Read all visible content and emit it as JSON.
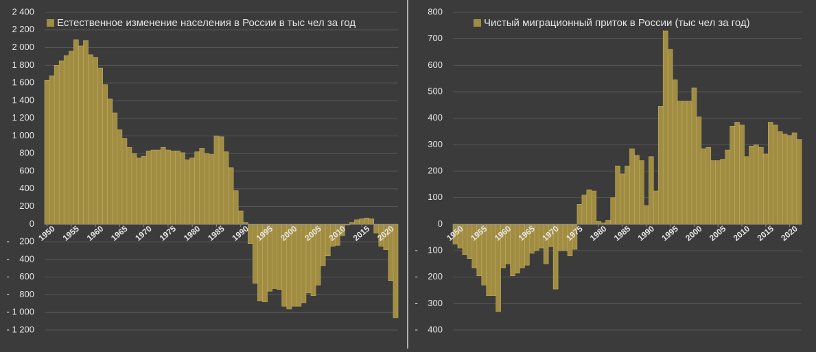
{
  "chart_data": [
    {
      "type": "bar",
      "title": "Естественное изменение населения в России в тыс чел за год",
      "color": "#a08c42",
      "grid": true,
      "legend": "top",
      "xlim": [
        1949.5,
        2022.5
      ],
      "xticks": [
        1950,
        1955,
        1960,
        1965,
        1970,
        1975,
        1980,
        1985,
        1990,
        1995,
        2000,
        2005,
        2010,
        2015,
        2020
      ],
      "ylim": [
        -1200,
        2400
      ],
      "yticks": [
        {
          "value": 2400,
          "label": "2 400"
        },
        {
          "value": 2200,
          "label": "2 200"
        },
        {
          "value": 2000,
          "label": "2 000"
        },
        {
          "value": 1800,
          "label": "1 800"
        },
        {
          "value": 1600,
          "label": "1 600"
        },
        {
          "value": 1400,
          "label": "1 400"
        },
        {
          "value": 1200,
          "label": "1 200"
        },
        {
          "value": 1000,
          "label": "1 000"
        },
        800,
        600,
        400,
        200,
        0,
        {
          "value": -200,
          "label": "-    200"
        },
        {
          "value": -400,
          "label": "-    400"
        },
        {
          "value": -600,
          "label": "-    600"
        },
        {
          "value": -800,
          "label": "-    800"
        },
        {
          "value": -1000,
          "label": "- 1 000"
        },
        {
          "value": -1200,
          "label": "- 1 200"
        }
      ],
      "x": [
        1950,
        1951,
        1952,
        1953,
        1954,
        1955,
        1956,
        1957,
        1958,
        1959,
        1960,
        1961,
        1962,
        1963,
        1964,
        1965,
        1966,
        1967,
        1968,
        1969,
        1970,
        1971,
        1972,
        1973,
        1974,
        1975,
        1976,
        1977,
        1978,
        1979,
        1980,
        1981,
        1982,
        1983,
        1984,
        1985,
        1986,
        1987,
        1988,
        1989,
        1990,
        1991,
        1992,
        1993,
        1994,
        1995,
        1996,
        1997,
        1998,
        1999,
        2000,
        2001,
        2002,
        2003,
        2004,
        2005,
        2006,
        2007,
        2008,
        2009,
        2010,
        2011,
        2012,
        2013,
        2014,
        2015,
        2016,
        2017,
        2018,
        2019,
        2020,
        2021,
        2022
      ],
      "values": [
        1630,
        1680,
        1800,
        1850,
        1910,
        1960,
        2090,
        2020,
        2080,
        1920,
        1890,
        1770,
        1580,
        1420,
        1260,
        1070,
        970,
        870,
        800,
        750,
        770,
        830,
        840,
        840,
        870,
        840,
        830,
        830,
        810,
        730,
        750,
        820,
        860,
        800,
        790,
        1000,
        990,
        820,
        640,
        380,
        150,
        20,
        -220,
        -670,
        -870,
        -880,
        -760,
        -730,
        -740,
        -930,
        -960,
        -930,
        -930,
        -890,
        -780,
        -810,
        -690,
        -470,
        -360,
        -250,
        -240,
        -130,
        -10,
        20,
        50,
        60,
        70,
        60,
        -100,
        -250,
        -290,
        -640,
        -1060
      ]
    },
    {
      "type": "bar",
      "title": "Чистый миграционный приток в России (тыс чел за год)",
      "color": "#a08c42",
      "grid": true,
      "legend": "top",
      "xlim": [
        1949.5,
        2022.5
      ],
      "xticks": [
        1950,
        1955,
        1960,
        1965,
        1970,
        1975,
        1980,
        1985,
        1990,
        1995,
        2000,
        2005,
        2010,
        2015,
        2020
      ],
      "ylim": [
        -400,
        800
      ],
      "yticks": [
        800,
        700,
        600,
        500,
        400,
        300,
        200,
        100,
        0,
        {
          "value": -100,
          "label": "-    100"
        },
        {
          "value": -200,
          "label": "-    200"
        },
        {
          "value": -300,
          "label": "-    300"
        },
        {
          "value": -400,
          "label": "-    400"
        }
      ],
      "x": [
        1950,
        1951,
        1952,
        1953,
        1954,
        1955,
        1956,
        1957,
        1958,
        1959,
        1960,
        1961,
        1962,
        1963,
        1964,
        1965,
        1966,
        1967,
        1968,
        1969,
        1970,
        1971,
        1972,
        1973,
        1974,
        1975,
        1976,
        1977,
        1978,
        1979,
        1980,
        1981,
        1982,
        1983,
        1984,
        1985,
        1986,
        1987,
        1988,
        1989,
        1990,
        1991,
        1992,
        1993,
        1994,
        1995,
        1996,
        1997,
        1998,
        1999,
        2000,
        2001,
        2002,
        2003,
        2004,
        2005,
        2006,
        2007,
        2008,
        2009,
        2010,
        2011,
        2012,
        2013,
        2014,
        2015,
        2016,
        2017,
        2018,
        2019,
        2020,
        2021,
        2022
      ],
      "values": [
        -75,
        -90,
        -115,
        -130,
        -165,
        -195,
        -230,
        -270,
        -270,
        -330,
        -165,
        -150,
        -195,
        -185,
        -165,
        -155,
        -110,
        -100,
        -90,
        -150,
        -85,
        -245,
        -100,
        -100,
        -120,
        -95,
        75,
        110,
        130,
        125,
        10,
        5,
        15,
        100,
        220,
        190,
        220,
        285,
        260,
        240,
        70,
        255,
        125,
        445,
        730,
        660,
        545,
        465,
        465,
        465,
        515,
        405,
        285,
        290,
        240,
        240,
        245,
        280,
        370,
        385,
        375,
        255,
        295,
        300,
        290,
        265,
        385,
        375,
        350,
        340,
        335,
        345,
        320
      ]
    }
  ]
}
